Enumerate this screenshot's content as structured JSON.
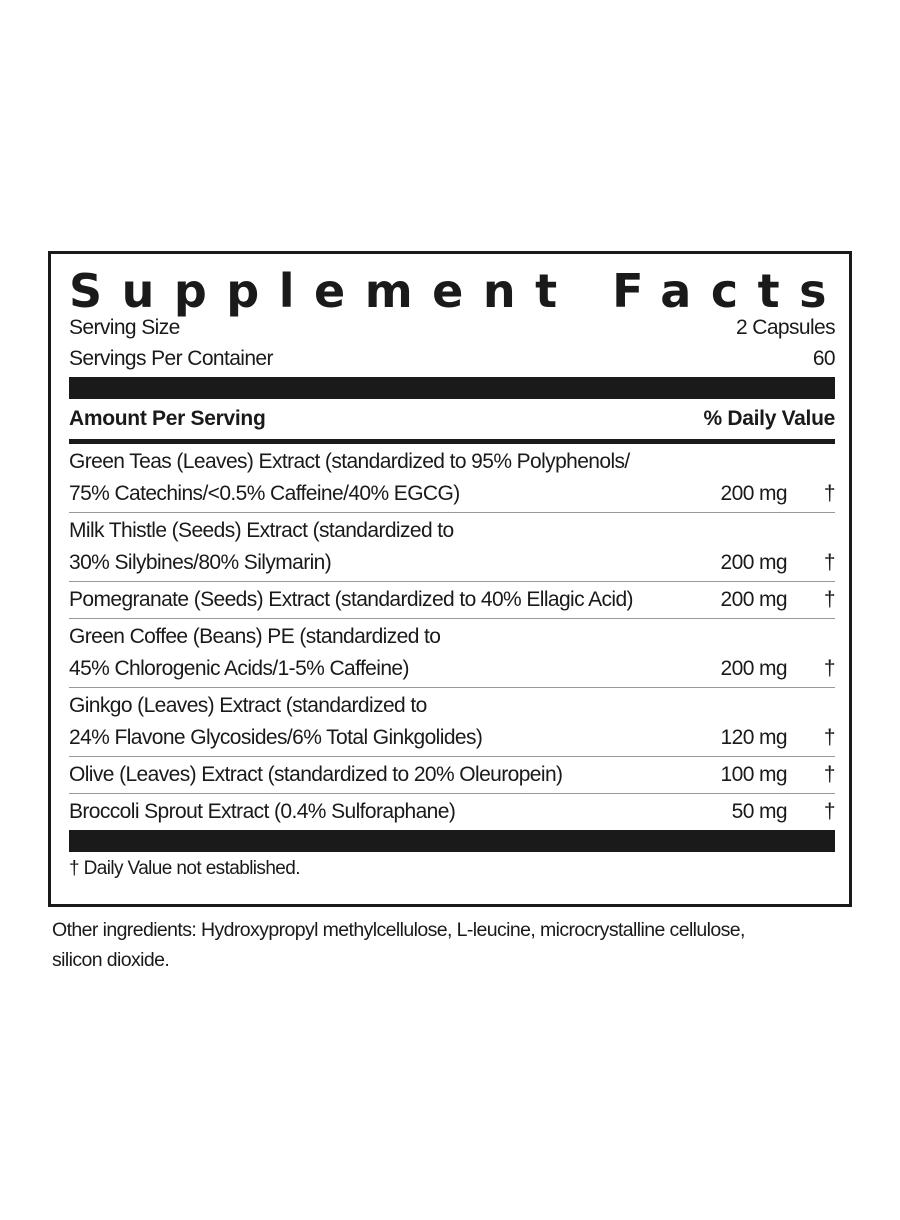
{
  "title": "Supplement Facts",
  "serving_size_label": "Serving Size",
  "serving_size_value": "2 Capsules",
  "servings_per_container_label": "Servings Per Container",
  "servings_per_container_value": "60",
  "header": {
    "amount": "Amount Per Serving",
    "daily_value": "% Daily Value"
  },
  "items": [
    {
      "name": "Green Teas (Leaves) Extract (standardized to 95% Polyphenols/ 75% Catechins/<0.5% Caffeine/40% EGCG)",
      "line1": "Green Teas (Leaves) Extract (standardized to 95% Polyphenols/",
      "line2": "75% Catechins/<0.5% Caffeine/40% EGCG)",
      "amount": "200 mg",
      "dv": "†"
    },
    {
      "name": "Milk Thistle (Seeds) Extract (standardized to 30% Silybines/80% Silymarin)",
      "line1": "Milk Thistle (Seeds) Extract (standardized to",
      "line2": "30% Silybines/80% Silymarin)",
      "amount": "200 mg",
      "dv": "†"
    },
    {
      "name": "Pomegranate (Seeds) Extract (standardized to 40% Ellagic Acid)",
      "line1": "Pomegranate (Seeds) Extract  (standardized to 40% Ellagic Acid)",
      "line2": "",
      "amount": "200 mg",
      "dv": "†"
    },
    {
      "name": "Green Coffee (Beans) PE (standardized to 45% Chlorogenic Acids/1-5% Caffeine)",
      "line1": "Green Coffee (Beans) PE  (standardized to",
      "line2": "45% Chlorogenic Acids/1-5% Caffeine)",
      "amount": "200 mg",
      "dv": "†"
    },
    {
      "name": "Ginkgo (Leaves) Extract (standardized to 24% Flavone Glycosides/6% Total Ginkgolides)",
      "line1": "Ginkgo (Leaves) Extract  (standardized to",
      "line2": "24% Flavone Glycosides/6% Total Ginkgolides)",
      "amount": "120 mg",
      "dv": "†"
    },
    {
      "name": "Olive (Leaves) Extract (standardized to 20% Oleuropein)",
      "line1": "Olive (Leaves) Extract (standardized to 20% Oleuropein)",
      "line2": "",
      "amount": "100 mg",
      "dv": "†"
    },
    {
      "name": "Broccoli Sprout Extract (0.4% Sulforaphane)",
      "line1": "Broccoli Sprout Extract (0.4% Sulforaphane)",
      "line2": "",
      "amount": "50 mg",
      "dv": "†"
    }
  ],
  "footnote": "† Daily Value not established.",
  "other_ingredients": "Other ingredients: Hydroxypropyl methylcellulose, L-leucine, microcrystalline cellulose, silicon dioxide."
}
